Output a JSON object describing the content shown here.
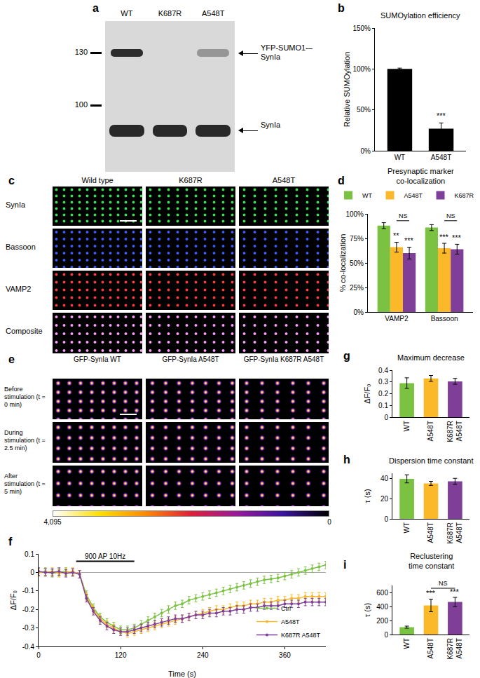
{
  "image_panels": {
    "a": {
      "label": "a",
      "columns": [
        "WT",
        "K687R",
        "A548T"
      ],
      "markers": [
        130,
        100
      ],
      "bands": [
        "YFP-SUMO1-–SynIa",
        "SynIa"
      ]
    },
    "c": {
      "label": "c",
      "columns": [
        "Wild type",
        "K687R",
        "A548T"
      ],
      "rows": [
        "SynIa",
        "Bassoon",
        "VAMP2",
        "Composite"
      ]
    },
    "e": {
      "label": "e",
      "columns": [
        "GFP-SynIa WT",
        "GFP-SynIa A548T",
        "GFP-SynIa K687R A548T"
      ],
      "rows": [
        "Before stimulation (t = 0 min)",
        "During stimulation (t = 2.5 min)",
        "After stimulation (t = 5 min)"
      ],
      "colorbar_ticks": [
        {
          "value": 4095,
          "label": "4,095"
        },
        0
      ]
    }
  },
  "chart_data": [
    {
      "label": "b",
      "type": "bar",
      "title": "SUMOylation efficiency",
      "y_label": "Relative SUMOylation",
      "categories": [
        "WT",
        "A548T"
      ],
      "values": [
        100,
        27
      ],
      "errors": [
        1,
        7
      ],
      "color": "#000000",
      "ylim": [
        0,
        150
      ],
      "yticks": [
        {
          "value": 0,
          "label": "0%"
        },
        {
          "value": 50,
          "label": "50%"
        },
        {
          "value": 100,
          "label": "100%"
        },
        {
          "value": 150,
          "label": "150%"
        }
      ],
      "annotations": [
        {
          "text": "***",
          "x": "A548T",
          "y": 36
        }
      ]
    },
    {
      "label": "d",
      "type": "bar",
      "title": "Presynaptic marker co-localization",
      "y_label": "% co-localization",
      "categories": [
        "VAMP2",
        "Bassoon"
      ],
      "series": [
        {
          "name": "WT",
          "color": "#7cc242",
          "values": [
            88,
            86
          ],
          "errors": [
            3,
            3
          ]
        },
        {
          "name": "A548T",
          "color": "#fbb829",
          "values": [
            66,
            65
          ],
          "errors": [
            5,
            5
          ]
        },
        {
          "name": "K687R",
          "color": "#7f3f98",
          "values": [
            60,
            64
          ],
          "errors": [
            6,
            5
          ]
        }
      ],
      "ylim": [
        0,
        100
      ],
      "yticks": [
        {
          "value": 0,
          "label": "0%"
        },
        {
          "value": 25,
          "label": "25%"
        },
        {
          "value": 50,
          "label": "50%"
        },
        {
          "value": 75,
          "label": "75%"
        },
        {
          "value": 100,
          "label": "100%"
        }
      ],
      "legend": "top",
      "annotations": [
        {
          "text": "**",
          "x": "VAMP2",
          "series": "A548T",
          "y": 72
        },
        {
          "text": "***",
          "x": "VAMP2",
          "series": "K687R",
          "y": 67
        },
        {
          "text": "***",
          "x": "Bassoon",
          "series": "A548T",
          "y": 71
        },
        {
          "text": "***",
          "x": "Bassoon",
          "series": "K687R",
          "y": 70
        }
      ],
      "brackets": [
        {
          "text": "NS",
          "x": "VAMP2",
          "from": "A548T",
          "to": "K687R",
          "y": 93
        },
        {
          "text": "NS",
          "x": "Bassoon",
          "from": "A548T",
          "to": "K687R",
          "y": 93
        }
      ]
    },
    {
      "label": "f",
      "type": "line",
      "x_label": "Time (s)",
      "y_label": "ΔF/F₀",
      "marker": "circle",
      "x": [
        0,
        10,
        20,
        30,
        40,
        50,
        60,
        70,
        80,
        90,
        100,
        110,
        120,
        130,
        140,
        150,
        160,
        170,
        180,
        190,
        200,
        210,
        220,
        230,
        240,
        250,
        260,
        270,
        280,
        290,
        300,
        310,
        320,
        330,
        340,
        350,
        360,
        370,
        380,
        390,
        400,
        410,
        420
      ],
      "series": [
        {
          "name": "Ctrl",
          "color": "#7cc242",
          "error": 0.02,
          "values": [
            0,
            0.005,
            -0.005,
            0,
            0.005,
            0,
            -0.01,
            -0.12,
            -0.19,
            -0.24,
            -0.27,
            -0.29,
            -0.31,
            -0.31,
            -0.3,
            -0.28,
            -0.26,
            -0.24,
            -0.22,
            -0.2,
            -0.18,
            -0.17,
            -0.15,
            -0.14,
            -0.13,
            -0.12,
            -0.11,
            -0.1,
            -0.09,
            -0.08,
            -0.07,
            -0.06,
            -0.05,
            -0.04,
            -0.035,
            -0.03,
            -0.02,
            -0.01,
            0,
            0.01,
            0.02,
            0.03,
            0.04
          ]
        },
        {
          "name": "A548T",
          "color": "#fbb829",
          "error": 0.02,
          "values": [
            0,
            0,
            0.005,
            -0.005,
            0,
            0.005,
            -0.01,
            -0.13,
            -0.2,
            -0.25,
            -0.28,
            -0.3,
            -0.32,
            -0.33,
            -0.32,
            -0.31,
            -0.3,
            -0.29,
            -0.28,
            -0.27,
            -0.26,
            -0.25,
            -0.24,
            -0.23,
            -0.22,
            -0.21,
            -0.2,
            -0.2,
            -0.19,
            -0.18,
            -0.18,
            -0.17,
            -0.17,
            -0.16,
            -0.16,
            -0.15,
            -0.15,
            -0.14,
            -0.14,
            -0.13,
            -0.13,
            -0.13,
            -0.13
          ]
        },
        {
          "name": "K687R A548T",
          "color": "#7f3f98",
          "error": 0.02,
          "values": [
            0.005,
            0,
            0,
            0.005,
            -0.005,
            0,
            -0.01,
            -0.14,
            -0.21,
            -0.26,
            -0.29,
            -0.31,
            -0.32,
            -0.32,
            -0.31,
            -0.3,
            -0.29,
            -0.28,
            -0.27,
            -0.26,
            -0.25,
            -0.25,
            -0.24,
            -0.23,
            -0.23,
            -0.22,
            -0.22,
            -0.21,
            -0.21,
            -0.2,
            -0.2,
            -0.19,
            -0.19,
            -0.18,
            -0.18,
            -0.18,
            -0.17,
            -0.17,
            -0.17,
            -0.16,
            -0.16,
            -0.16,
            -0.16
          ]
        }
      ],
      "xlim": [
        0,
        420
      ],
      "xticks": [
        0,
        120,
        240,
        360
      ],
      "ylim": [
        -0.4,
        0.1
      ],
      "yticks": [
        -0.4,
        -0.3,
        -0.2,
        -0.1,
        0,
        0.1
      ],
      "legend": "lower right",
      "annotations": [
        {
          "text": "900 AP 10Hz",
          "x": [
            55,
            140
          ],
          "y": 0.06
        }
      ]
    },
    {
      "label": "g",
      "type": "bar",
      "title": "Maximum decrease",
      "y_label": "ΔF/F₀",
      "categories": [
        "WT",
        "A548T",
        "K687R A548T"
      ],
      "values": [
        0.29,
        0.33,
        0.305
      ],
      "errors": [
        0.045,
        0.025,
        0.025
      ],
      "colors": [
        "#7cc242",
        "#fbb829",
        "#7f3f98"
      ],
      "ylim": [
        0,
        0.4
      ],
      "yticks": [
        0,
        0.1,
        0.2,
        0.3,
        0.4
      ]
    },
    {
      "label": "h",
      "type": "bar",
      "title": "Dispersion time constant",
      "y_label": "τ (s)",
      "categories": [
        "WT",
        "A548T",
        "K687R A548T"
      ],
      "values": [
        39.5,
        35,
        37
      ],
      "errors": [
        4,
        2,
        3
      ],
      "colors": [
        "#7cc242",
        "#fbb829",
        "#7f3f98"
      ],
      "ylim": [
        0,
        45
      ],
      "yticks": [
        0,
        20,
        40
      ]
    },
    {
      "label": "i",
      "type": "bar",
      "title": "Reclustering time constant",
      "y_label": "τ (s)",
      "categories": [
        "WT",
        "A548T",
        "K687R A548T"
      ],
      "values": [
        105,
        415,
        465
      ],
      "errors": [
        15,
        90,
        65
      ],
      "colors": [
        "#7cc242",
        "#fbb829",
        "#7f3f98"
      ],
      "ylim": [
        0,
        700
      ],
      "yticks": [
        0,
        200,
        400,
        600
      ],
      "annotations": [
        {
          "text": "***",
          "x": "A548T",
          "y": 510
        },
        {
          "text": "***",
          "x": "K687R A548T",
          "y": 535
        }
      ],
      "brackets": [
        {
          "text": "NS",
          "from": "A548T",
          "to": "K687R A548T",
          "y": 660
        }
      ]
    }
  ]
}
